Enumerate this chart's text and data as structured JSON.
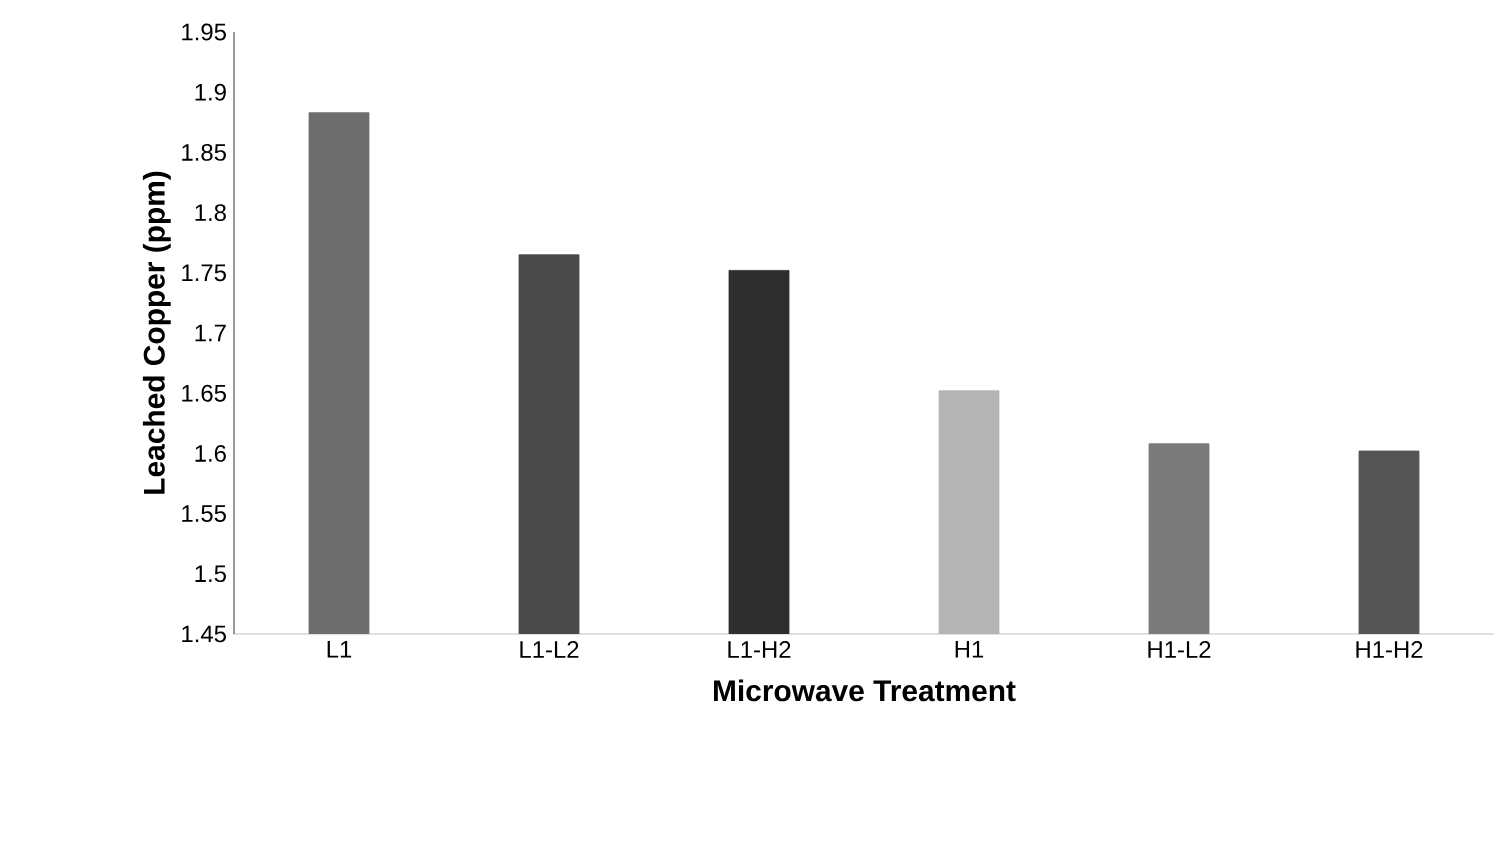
{
  "chart_data": {
    "type": "bar",
    "xlabel": "Microwave Treatment",
    "ylabel": "Leached Copper (ppm)",
    "categories": [
      "L1",
      "L1-L2",
      "L1-H2",
      "H1",
      "H1-L2",
      "H1-H2"
    ],
    "values": [
      1.883,
      1.765,
      1.752,
      1.652,
      1.608,
      1.602
    ],
    "colors": [
      "#6e6e6e",
      "#4a4a4a",
      "#2e2e2e",
      "#b4b4b4",
      "#7a7a7a",
      "#555555"
    ],
    "ylim": [
      1.45,
      1.95
    ],
    "yticks": [
      1.45,
      1.5,
      1.55,
      1.6,
      1.65,
      1.7,
      1.75,
      1.8,
      1.85,
      1.9,
      1.95
    ],
    "grid": false
  }
}
